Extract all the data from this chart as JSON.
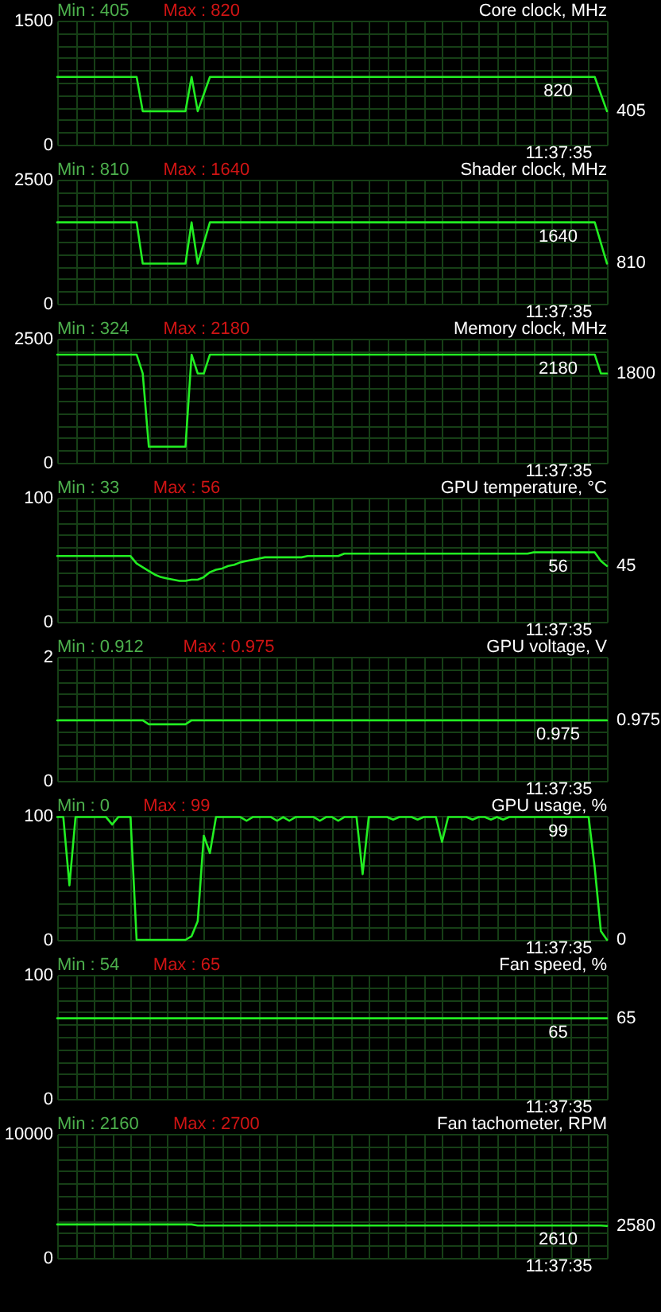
{
  "chart_data": [
    {
      "type": "line",
      "title": "Core clock, MHz",
      "annotations": [
        "Min : 405",
        "Max : 820"
      ],
      "color": "#22ee22",
      "grid": true,
      "ylim": [
        0,
        1500
      ],
      "yticks": [
        0,
        {
          "value": 150,
          "label": null
        },
        {
          "value": 300,
          "label": null
        },
        {
          "value": 450,
          "label": null
        },
        {
          "value": 600,
          "label": null
        },
        {
          "value": 750,
          "label": null
        },
        {
          "value": 900,
          "label": null
        },
        {
          "value": 1050,
          "label": null
        },
        {
          "value": 1200,
          "label": null
        },
        {
          "value": 1350,
          "label": null
        },
        1500
      ],
      "categories": [
        null,
        null,
        null,
        null,
        null,
        null,
        null,
        null,
        null,
        null,
        null,
        null,
        null,
        null,
        null,
        null,
        null,
        null,
        null,
        null,
        null,
        null,
        null,
        null,
        null,
        null,
        null,
        null,
        null,
        null,
        null,
        null,
        null,
        null,
        null,
        null,
        null,
        null,
        null,
        null,
        null,
        null,
        null,
        null,
        null,
        null,
        null,
        null,
        null,
        null,
        null,
        null,
        null,
        null,
        null,
        null,
        null,
        null,
        null,
        null,
        null,
        null,
        null,
        null,
        null,
        null,
        null,
        null,
        null,
        null,
        null,
        null,
        null,
        null,
        null,
        null,
        null,
        null,
        null,
        null,
        null,
        null,
        "11:37:35",
        null,
        null,
        null,
        null,
        null,
        null,
        null,
        null
      ],
      "values": [
        820,
        820,
        820,
        820,
        820,
        820,
        820,
        820,
        820,
        820,
        820,
        820,
        820,
        820,
        405,
        405,
        405,
        405,
        405,
        405,
        405,
        405,
        820,
        405,
        612,
        820,
        820,
        820,
        820,
        820,
        820,
        820,
        820,
        820,
        820,
        820,
        820,
        820,
        820,
        820,
        820,
        820,
        820,
        820,
        820,
        820,
        820,
        820,
        820,
        820,
        820,
        820,
        820,
        820,
        820,
        820,
        820,
        820,
        820,
        820,
        820,
        820,
        820,
        820,
        820,
        820,
        820,
        820,
        820,
        820,
        820,
        820,
        820,
        820,
        820,
        820,
        820,
        820,
        820,
        820,
        820,
        820,
        820,
        820,
        820,
        820,
        820,
        820,
        820,
        612,
        405
      ],
      "value_labels": [
        null,
        null,
        null,
        null,
        null,
        null,
        null,
        null,
        null,
        null,
        null,
        null,
        null,
        null,
        null,
        null,
        null,
        null,
        null,
        null,
        null,
        null,
        null,
        null,
        null,
        null,
        null,
        null,
        null,
        null,
        null,
        null,
        null,
        null,
        null,
        null,
        null,
        null,
        null,
        null,
        null,
        null,
        null,
        null,
        null,
        null,
        null,
        null,
        null,
        null,
        null,
        null,
        null,
        null,
        null,
        null,
        null,
        null,
        null,
        null,
        null,
        null,
        null,
        null,
        null,
        null,
        null,
        null,
        null,
        null,
        null,
        null,
        null,
        null,
        null,
        null,
        null,
        null,
        null,
        null,
        null,
        null,
        "820",
        null,
        null,
        null,
        null,
        null,
        null,
        null,
        "405"
      ]
    },
    {
      "type": "line",
      "title": "Shader clock, MHz",
      "annotations": [
        "Min : 810",
        "Max : 1640"
      ],
      "color": "#22ee22",
      "grid": true,
      "ylim": [
        0,
        2500
      ],
      "yticks": [
        0,
        {
          "value": 250,
          "label": null
        },
        {
          "value": 500,
          "label": null
        },
        {
          "value": 750,
          "label": null
        },
        {
          "value": 1000,
          "label": null
        },
        {
          "value": 1250,
          "label": null
        },
        {
          "value": 1500,
          "label": null
        },
        {
          "value": 1750,
          "label": null
        },
        {
          "value": 2000,
          "label": null
        },
        {
          "value": 2250,
          "label": null
        },
        2500
      ],
      "categories": [
        null,
        null,
        null,
        null,
        null,
        null,
        null,
        null,
        null,
        null,
        null,
        null,
        null,
        null,
        null,
        null,
        null,
        null,
        null,
        null,
        null,
        null,
        null,
        null,
        null,
        null,
        null,
        null,
        null,
        null,
        null,
        null,
        null,
        null,
        null,
        null,
        null,
        null,
        null,
        null,
        null,
        null,
        null,
        null,
        null,
        null,
        null,
        null,
        null,
        null,
        null,
        null,
        null,
        null,
        null,
        null,
        null,
        null,
        null,
        null,
        null,
        null,
        null,
        null,
        null,
        null,
        null,
        null,
        null,
        null,
        null,
        null,
        null,
        null,
        null,
        null,
        null,
        null,
        null,
        null,
        null,
        null,
        "11:37:35",
        null,
        null,
        null,
        null,
        null,
        null,
        null,
        null
      ],
      "values": [
        1640,
        1640,
        1640,
        1640,
        1640,
        1640,
        1640,
        1640,
        1640,
        1640,
        1640,
        1640,
        1640,
        1640,
        810,
        810,
        810,
        810,
        810,
        810,
        810,
        810,
        1640,
        810,
        1225,
        1640,
        1640,
        1640,
        1640,
        1640,
        1640,
        1640,
        1640,
        1640,
        1640,
        1640,
        1640,
        1640,
        1640,
        1640,
        1640,
        1640,
        1640,
        1640,
        1640,
        1640,
        1640,
        1640,
        1640,
        1640,
        1640,
        1640,
        1640,
        1640,
        1640,
        1640,
        1640,
        1640,
        1640,
        1640,
        1640,
        1640,
        1640,
        1640,
        1640,
        1640,
        1640,
        1640,
        1640,
        1640,
        1640,
        1640,
        1640,
        1640,
        1640,
        1640,
        1640,
        1640,
        1640,
        1640,
        1640,
        1640,
        1640,
        1640,
        1640,
        1640,
        1640,
        1640,
        1640,
        1225,
        810
      ],
      "value_labels": [
        null,
        null,
        null,
        null,
        null,
        null,
        null,
        null,
        null,
        null,
        null,
        null,
        null,
        null,
        null,
        null,
        null,
        null,
        null,
        null,
        null,
        null,
        null,
        null,
        null,
        null,
        null,
        null,
        null,
        null,
        null,
        null,
        null,
        null,
        null,
        null,
        null,
        null,
        null,
        null,
        null,
        null,
        null,
        null,
        null,
        null,
        null,
        null,
        null,
        null,
        null,
        null,
        null,
        null,
        null,
        null,
        null,
        null,
        null,
        null,
        null,
        null,
        null,
        null,
        null,
        null,
        null,
        null,
        null,
        null,
        null,
        null,
        null,
        null,
        null,
        null,
        null,
        null,
        null,
        null,
        null,
        null,
        "1640",
        null,
        null,
        null,
        null,
        null,
        null,
        null,
        "810"
      ]
    },
    {
      "type": "line",
      "title": "Memory clock, MHz",
      "annotations": [
        "Min : 324",
        "Max : 2180"
      ],
      "color": "#22ee22",
      "grid": true,
      "ylim": [
        0,
        2500
      ],
      "yticks": [
        0,
        {
          "value": 250,
          "label": null
        },
        {
          "value": 500,
          "label": null
        },
        {
          "value": 750,
          "label": null
        },
        {
          "value": 1000,
          "label": null
        },
        {
          "value": 1250,
          "label": null
        },
        {
          "value": 1500,
          "label": null
        },
        {
          "value": 1750,
          "label": null
        },
        {
          "value": 2000,
          "label": null
        },
        {
          "value": 2250,
          "label": null
        },
        2500
      ],
      "categories": [
        null,
        null,
        null,
        null,
        null,
        null,
        null,
        null,
        null,
        null,
        null,
        null,
        null,
        null,
        null,
        null,
        null,
        null,
        null,
        null,
        null,
        null,
        null,
        null,
        null,
        null,
        null,
        null,
        null,
        null,
        null,
        null,
        null,
        null,
        null,
        null,
        null,
        null,
        null,
        null,
        null,
        null,
        null,
        null,
        null,
        null,
        null,
        null,
        null,
        null,
        null,
        null,
        null,
        null,
        null,
        null,
        null,
        null,
        null,
        null,
        null,
        null,
        null,
        null,
        null,
        null,
        null,
        null,
        null,
        null,
        null,
        null,
        null,
        null,
        null,
        null,
        null,
        null,
        null,
        null,
        null,
        null,
        "11:37:35",
        null,
        null,
        null,
        null,
        null,
        null,
        null,
        null
      ],
      "values": [
        2180,
        2180,
        2180,
        2180,
        2180,
        2180,
        2180,
        2180,
        2180,
        2180,
        2180,
        2180,
        2180,
        2180,
        1800,
        324,
        324,
        324,
        324,
        324,
        324,
        324,
        2180,
        1800,
        1800,
        2180,
        2180,
        2180,
        2180,
        2180,
        2180,
        2180,
        2180,
        2180,
        2180,
        2180,
        2180,
        2180,
        2180,
        2180,
        2180,
        2180,
        2180,
        2180,
        2180,
        2180,
        2180,
        2180,
        2180,
        2180,
        2180,
        2180,
        2180,
        2180,
        2180,
        2180,
        2180,
        2180,
        2180,
        2180,
        2180,
        2180,
        2180,
        2180,
        2180,
        2180,
        2180,
        2180,
        2180,
        2180,
        2180,
        2180,
        2180,
        2180,
        2180,
        2180,
        2180,
        2180,
        2180,
        2180,
        2180,
        2180,
        2180,
        2180,
        2180,
        2180,
        2180,
        2180,
        2180,
        1800,
        1800
      ],
      "value_labels": [
        null,
        null,
        null,
        null,
        null,
        null,
        null,
        null,
        null,
        null,
        null,
        null,
        null,
        null,
        null,
        null,
        null,
        null,
        null,
        null,
        null,
        null,
        null,
        null,
        null,
        null,
        null,
        null,
        null,
        null,
        null,
        null,
        null,
        null,
        null,
        null,
        null,
        null,
        null,
        null,
        null,
        null,
        null,
        null,
        null,
        null,
        null,
        null,
        null,
        null,
        null,
        null,
        null,
        null,
        null,
        null,
        null,
        null,
        null,
        null,
        null,
        null,
        null,
        null,
        null,
        null,
        null,
        null,
        null,
        null,
        null,
        null,
        null,
        null,
        null,
        null,
        null,
        null,
        null,
        null,
        null,
        null,
        "2180",
        null,
        null,
        null,
        null,
        null,
        null,
        null,
        "1800"
      ]
    },
    {
      "type": "line",
      "title": "GPU temperature, °C",
      "annotations": [
        "Min : 33",
        "Max : 56"
      ],
      "color": "#22ee22",
      "grid": true,
      "ylim": [
        0,
        100
      ],
      "yticks": [
        0,
        {
          "value": 10,
          "label": null
        },
        {
          "value": 20,
          "label": null
        },
        {
          "value": 30,
          "label": null
        },
        {
          "value": 40,
          "label": null
        },
        {
          "value": 50,
          "label": null
        },
        {
          "value": 60,
          "label": null
        },
        {
          "value": 70,
          "label": null
        },
        {
          "value": 80,
          "label": null
        },
        {
          "value": 90,
          "label": null
        },
        100
      ],
      "categories": [
        null,
        null,
        null,
        null,
        null,
        null,
        null,
        null,
        null,
        null,
        null,
        null,
        null,
        null,
        null,
        null,
        null,
        null,
        null,
        null,
        null,
        null,
        null,
        null,
        null,
        null,
        null,
        null,
        null,
        null,
        null,
        null,
        null,
        null,
        null,
        null,
        null,
        null,
        null,
        null,
        null,
        null,
        null,
        null,
        null,
        null,
        null,
        null,
        null,
        null,
        null,
        null,
        null,
        null,
        null,
        null,
        null,
        null,
        null,
        null,
        null,
        null,
        null,
        null,
        null,
        null,
        null,
        null,
        null,
        null,
        null,
        null,
        null,
        null,
        null,
        null,
        null,
        null,
        null,
        null,
        null,
        null,
        "11:37:35",
        null,
        null,
        null,
        null,
        null,
        null,
        null,
        null
      ],
      "values": [
        53,
        53,
        53,
        53,
        53,
        53,
        53,
        53,
        53,
        53,
        53,
        53,
        53,
        47,
        44,
        41,
        38,
        36,
        35,
        34,
        33,
        33,
        34,
        34,
        36,
        40,
        42,
        43,
        45,
        46,
        48,
        49,
        50,
        51,
        52,
        52,
        52,
        52,
        52,
        52,
        52,
        53,
        53,
        53,
        53,
        53,
        53,
        55,
        55,
        55,
        55,
        55,
        55,
        55,
        55,
        55,
        55,
        55,
        55,
        55,
        55,
        55,
        55,
        55,
        55,
        55,
        55,
        55,
        55,
        55,
        55,
        55,
        55,
        55,
        55,
        55,
        55,
        55,
        56,
        56,
        56,
        56,
        56,
        56,
        56,
        56,
        56,
        56,
        56,
        49,
        45
      ],
      "value_labels": [
        null,
        null,
        null,
        null,
        null,
        null,
        null,
        null,
        null,
        null,
        null,
        null,
        null,
        null,
        null,
        null,
        null,
        null,
        null,
        null,
        null,
        null,
        null,
        null,
        null,
        null,
        null,
        null,
        null,
        null,
        null,
        null,
        null,
        null,
        null,
        null,
        null,
        null,
        null,
        null,
        null,
        null,
        null,
        null,
        null,
        null,
        null,
        null,
        null,
        null,
        null,
        null,
        null,
        null,
        null,
        null,
        null,
        null,
        null,
        null,
        null,
        null,
        null,
        null,
        null,
        null,
        null,
        null,
        null,
        null,
        null,
        null,
        null,
        null,
        null,
        null,
        null,
        null,
        null,
        null,
        null,
        null,
        "56",
        null,
        null,
        null,
        null,
        null,
        null,
        null,
        "45"
      ]
    },
    {
      "type": "line",
      "title": "GPU voltage, V",
      "annotations": [
        "Min : 0.912",
        "Max : 0.975"
      ],
      "color": "#22ee22",
      "grid": true,
      "ylim": [
        0,
        2
      ],
      "yticks": [
        0,
        {
          "value": 0.2,
          "label": null
        },
        {
          "value": 0.4,
          "label": null
        },
        {
          "value": 0.6,
          "label": null
        },
        {
          "value": 0.8,
          "label": null
        },
        {
          "value": 1,
          "label": null
        },
        {
          "value": 1.2,
          "label": null
        },
        {
          "value": 1.4,
          "label": null
        },
        {
          "value": 1.6,
          "label": null
        },
        {
          "value": 1.8,
          "label": null
        },
        2
      ],
      "categories": [
        null,
        null,
        null,
        null,
        null,
        null,
        null,
        null,
        null,
        null,
        null,
        null,
        null,
        null,
        null,
        null,
        null,
        null,
        null,
        null,
        null,
        null,
        null,
        null,
        null,
        null,
        null,
        null,
        null,
        null,
        null,
        null,
        null,
        null,
        null,
        null,
        null,
        null,
        null,
        null,
        null,
        null,
        null,
        null,
        null,
        null,
        null,
        null,
        null,
        null,
        null,
        null,
        null,
        null,
        null,
        null,
        null,
        null,
        null,
        null,
        null,
        null,
        null,
        null,
        null,
        null,
        null,
        null,
        null,
        null,
        null,
        null,
        null,
        null,
        null,
        null,
        null,
        null,
        null,
        null,
        null,
        null,
        "11:37:35",
        null,
        null,
        null,
        null,
        null,
        null,
        null,
        null
      ],
      "values": [
        0.975,
        0.975,
        0.975,
        0.975,
        0.975,
        0.975,
        0.975,
        0.975,
        0.975,
        0.975,
        0.975,
        0.975,
        0.975,
        0.975,
        0.975,
        0.912,
        0.912,
        0.912,
        0.912,
        0.912,
        0.912,
        0.912,
        0.975,
        0.975,
        0.975,
        0.975,
        0.975,
        0.975,
        0.975,
        0.975,
        0.975,
        0.975,
        0.975,
        0.975,
        0.975,
        0.975,
        0.975,
        0.975,
        0.975,
        0.975,
        0.975,
        0.975,
        0.975,
        0.975,
        0.975,
        0.975,
        0.975,
        0.975,
        0.975,
        0.975,
        0.975,
        0.975,
        0.975,
        0.975,
        0.975,
        0.975,
        0.975,
        0.975,
        0.975,
        0.975,
        0.975,
        0.975,
        0.975,
        0.975,
        0.975,
        0.975,
        0.975,
        0.975,
        0.975,
        0.975,
        0.975,
        0.975,
        0.975,
        0.975,
        0.975,
        0.975,
        0.975,
        0.975,
        0.975,
        0.975,
        0.975,
        0.975,
        0.975,
        0.975,
        0.975,
        0.975,
        0.975,
        0.975,
        0.975,
        0.975,
        0.975
      ],
      "value_labels": [
        null,
        null,
        null,
        null,
        null,
        null,
        null,
        null,
        null,
        null,
        null,
        null,
        null,
        null,
        null,
        null,
        null,
        null,
        null,
        null,
        null,
        null,
        null,
        null,
        null,
        null,
        null,
        null,
        null,
        null,
        null,
        null,
        null,
        null,
        null,
        null,
        null,
        null,
        null,
        null,
        null,
        null,
        null,
        null,
        null,
        null,
        null,
        null,
        null,
        null,
        null,
        null,
        null,
        null,
        null,
        null,
        null,
        null,
        null,
        null,
        null,
        null,
        null,
        null,
        null,
        null,
        null,
        null,
        null,
        null,
        null,
        null,
        null,
        null,
        null,
        null,
        null,
        null,
        null,
        null,
        null,
        null,
        "0.975",
        null,
        null,
        null,
        null,
        null,
        null,
        null,
        "0.975"
      ]
    },
    {
      "type": "line",
      "title": "GPU usage, %",
      "annotations": [
        "Min : 0",
        "Max : 99"
      ],
      "color": "#22ee22",
      "grid": true,
      "ylim": [
        0,
        100
      ],
      "yticks": [
        0,
        {
          "value": 10,
          "label": null
        },
        {
          "value": 20,
          "label": null
        },
        {
          "value": 30,
          "label": null
        },
        {
          "value": 40,
          "label": null
        },
        {
          "value": 50,
          "label": null
        },
        {
          "value": 60,
          "label": null
        },
        {
          "value": 70,
          "label": null
        },
        {
          "value": 80,
          "label": null
        },
        {
          "value": 90,
          "label": null
        },
        100
      ],
      "categories": [
        null,
        null,
        null,
        null,
        null,
        null,
        null,
        null,
        null,
        null,
        null,
        null,
        null,
        null,
        null,
        null,
        null,
        null,
        null,
        null,
        null,
        null,
        null,
        null,
        null,
        null,
        null,
        null,
        null,
        null,
        null,
        null,
        null,
        null,
        null,
        null,
        null,
        null,
        null,
        null,
        null,
        null,
        null,
        null,
        null,
        null,
        null,
        null,
        null,
        null,
        null,
        null,
        null,
        null,
        null,
        null,
        null,
        null,
        null,
        null,
        null,
        null,
        null,
        null,
        null,
        null,
        null,
        null,
        null,
        null,
        null,
        null,
        null,
        null,
        null,
        null,
        null,
        null,
        null,
        null,
        null,
        null,
        "11:37:35",
        null,
        null,
        null,
        null,
        null,
        null,
        null,
        null
      ],
      "values": [
        99,
        99,
        44,
        99,
        99,
        99,
        99,
        99,
        99,
        93,
        99,
        99,
        99,
        0,
        0,
        0,
        0,
        0,
        0,
        0,
        0,
        0,
        3,
        15,
        84,
        70,
        99,
        99,
        99,
        99,
        99,
        96,
        99,
        99,
        99,
        99,
        96,
        99,
        96,
        99,
        99,
        99,
        99,
        96,
        99,
        99,
        96,
        99,
        99,
        99,
        53,
        99,
        99,
        99,
        99,
        97,
        99,
        99,
        99,
        97,
        99,
        99,
        99,
        79,
        99,
        99,
        99,
        99,
        97,
        99,
        99,
        97,
        99,
        97,
        99,
        99,
        99,
        99,
        99,
        99,
        99,
        99,
        99,
        99,
        99,
        99,
        99,
        99,
        58,
        7,
        0
      ],
      "value_labels": [
        null,
        null,
        null,
        null,
        null,
        null,
        null,
        null,
        null,
        null,
        null,
        null,
        null,
        null,
        null,
        null,
        null,
        null,
        null,
        null,
        null,
        null,
        null,
        null,
        null,
        null,
        null,
        null,
        null,
        null,
        null,
        null,
        null,
        null,
        null,
        null,
        null,
        null,
        null,
        null,
        null,
        null,
        null,
        null,
        null,
        null,
        null,
        null,
        null,
        null,
        null,
        null,
        null,
        null,
        null,
        null,
        null,
        null,
        null,
        null,
        null,
        null,
        null,
        null,
        null,
        null,
        null,
        null,
        null,
        null,
        null,
        null,
        null,
        null,
        null,
        null,
        null,
        null,
        null,
        null,
        null,
        null,
        "99",
        null,
        null,
        null,
        null,
        null,
        null,
        null,
        "0"
      ]
    },
    {
      "type": "line",
      "title": "Fan speed, %",
      "annotations": [
        "Min : 54",
        "Max : 65"
      ],
      "color": "#22ee22",
      "grid": true,
      "ylim": [
        0,
        100
      ],
      "yticks": [
        0,
        {
          "value": 10,
          "label": null
        },
        {
          "value": 20,
          "label": null
        },
        {
          "value": 30,
          "label": null
        },
        {
          "value": 40,
          "label": null
        },
        {
          "value": 50,
          "label": null
        },
        {
          "value": 60,
          "label": null
        },
        {
          "value": 70,
          "label": null
        },
        {
          "value": 80,
          "label": null
        },
        {
          "value": 90,
          "label": null
        },
        100
      ],
      "categories": [
        null,
        null,
        null,
        null,
        null,
        null,
        null,
        null,
        null,
        null,
        null,
        null,
        null,
        null,
        null,
        null,
        null,
        null,
        null,
        null,
        null,
        null,
        null,
        null,
        null,
        null,
        null,
        null,
        null,
        null,
        null,
        null,
        null,
        null,
        null,
        null,
        null,
        null,
        null,
        null,
        null,
        null,
        null,
        null,
        null,
        null,
        null,
        null,
        null,
        null,
        null,
        null,
        null,
        null,
        null,
        null,
        null,
        null,
        null,
        null,
        null,
        null,
        null,
        null,
        null,
        null,
        null,
        null,
        null,
        null,
        null,
        null,
        null,
        null,
        null,
        null,
        null,
        null,
        null,
        null,
        null,
        null,
        "11:37:35",
        null,
        null,
        null,
        null,
        null,
        null,
        null,
        null
      ],
      "values": [
        65,
        65,
        65,
        65,
        65,
        65,
        65,
        65,
        65,
        65,
        65,
        65,
        65,
        65,
        65,
        65,
        65,
        65,
        65,
        65,
        65,
        65,
        65,
        65,
        65,
        65,
        65,
        65,
        65,
        65,
        65,
        65,
        65,
        65,
        65,
        65,
        65,
        65,
        65,
        65,
        65,
        65,
        65,
        65,
        65,
        65,
        65,
        65,
        65,
        65,
        65,
        65,
        65,
        65,
        65,
        65,
        65,
        65,
        65,
        65,
        65,
        65,
        65,
        65,
        65,
        65,
        65,
        65,
        65,
        65,
        65,
        65,
        65,
        65,
        65,
        65,
        65,
        65,
        65,
        65,
        65,
        65,
        65,
        65,
        65,
        65,
        65,
        65,
        65,
        65,
        65
      ],
      "value_labels": [
        null,
        null,
        null,
        null,
        null,
        null,
        null,
        null,
        null,
        null,
        null,
        null,
        null,
        null,
        null,
        null,
        null,
        null,
        null,
        null,
        null,
        null,
        null,
        null,
        null,
        null,
        null,
        null,
        null,
        null,
        null,
        null,
        null,
        null,
        null,
        null,
        null,
        null,
        null,
        null,
        null,
        null,
        null,
        null,
        null,
        null,
        null,
        null,
        null,
        null,
        null,
        null,
        null,
        null,
        null,
        null,
        null,
        null,
        null,
        null,
        null,
        null,
        null,
        null,
        null,
        null,
        null,
        null,
        null,
        null,
        null,
        null,
        null,
        null,
        null,
        null,
        null,
        null,
        null,
        null,
        null,
        null,
        "65",
        null,
        null,
        null,
        null,
        null,
        null,
        null,
        "65"
      ]
    },
    {
      "type": "line",
      "title": "Fan tachometer, RPM",
      "annotations": [
        "Min : 2160",
        "Max : 2700"
      ],
      "color": "#22ee22",
      "grid": true,
      "ylim": [
        0,
        10000
      ],
      "yticks": [
        0,
        {
          "value": 1000,
          "label": null
        },
        {
          "value": 2000,
          "label": null
        },
        {
          "value": 3000,
          "label": null
        },
        {
          "value": 4000,
          "label": null
        },
        {
          "value": 5000,
          "label": null
        },
        {
          "value": 6000,
          "label": null
        },
        {
          "value": 7000,
          "label": null
        },
        {
          "value": 8000,
          "label": null
        },
        {
          "value": 9000,
          "label": null
        },
        10000
      ],
      "categories": [
        null,
        null,
        null,
        null,
        null,
        null,
        null,
        null,
        null,
        null,
        null,
        null,
        null,
        null,
        null,
        null,
        null,
        null,
        null,
        null,
        null,
        null,
        null,
        null,
        null,
        null,
        null,
        null,
        null,
        null,
        null,
        null,
        null,
        null,
        null,
        null,
        null,
        null,
        null,
        null,
        null,
        null,
        null,
        null,
        null,
        null,
        null,
        null,
        null,
        null,
        null,
        null,
        null,
        null,
        null,
        null,
        null,
        null,
        null,
        null,
        null,
        null,
        null,
        null,
        null,
        null,
        null,
        null,
        null,
        null,
        null,
        null,
        null,
        null,
        null,
        null,
        null,
        null,
        null,
        null,
        null,
        null,
        "11:37:35",
        null,
        null,
        null,
        null,
        null,
        null,
        null,
        null
      ],
      "values": [
        2700,
        2700,
        2700,
        2700,
        2700,
        2700,
        2700,
        2700,
        2700,
        2700,
        2700,
        2700,
        2700,
        2700,
        2700,
        2700,
        2700,
        2700,
        2700,
        2700,
        2700,
        2700,
        2700,
        2610,
        2610,
        2610,
        2610,
        2610,
        2610,
        2610,
        2610,
        2610,
        2610,
        2610,
        2610,
        2610,
        2610,
        2610,
        2610,
        2610,
        2610,
        2610,
        2610,
        2610,
        2610,
        2610,
        2610,
        2610,
        2610,
        2610,
        2610,
        2610,
        2610,
        2610,
        2610,
        2610,
        2610,
        2610,
        2610,
        2610,
        2610,
        2610,
        2610,
        2610,
        2610,
        2610,
        2610,
        2610,
        2610,
        2610,
        2610,
        2610,
        2610,
        2610,
        2610,
        2610,
        2610,
        2610,
        2610,
        2610,
        2610,
        2610,
        2610,
        2610,
        2610,
        2610,
        2610,
        2610,
        2610,
        2610,
        2580
      ],
      "value_labels": [
        null,
        null,
        null,
        null,
        null,
        null,
        null,
        null,
        null,
        null,
        null,
        null,
        null,
        null,
        null,
        null,
        null,
        null,
        null,
        null,
        null,
        null,
        null,
        null,
        null,
        null,
        null,
        null,
        null,
        null,
        null,
        null,
        null,
        null,
        null,
        null,
        null,
        null,
        null,
        null,
        null,
        null,
        null,
        null,
        null,
        null,
        null,
        null,
        null,
        null,
        null,
        null,
        null,
        null,
        null,
        null,
        null,
        null,
        null,
        null,
        null,
        null,
        null,
        null,
        null,
        null,
        null,
        null,
        null,
        null,
        null,
        null,
        null,
        null,
        null,
        null,
        null,
        null,
        null,
        null,
        null,
        null,
        "2610",
        null,
        null,
        null,
        null,
        null,
        null,
        null,
        "2580"
      ]
    }
  ]
}
